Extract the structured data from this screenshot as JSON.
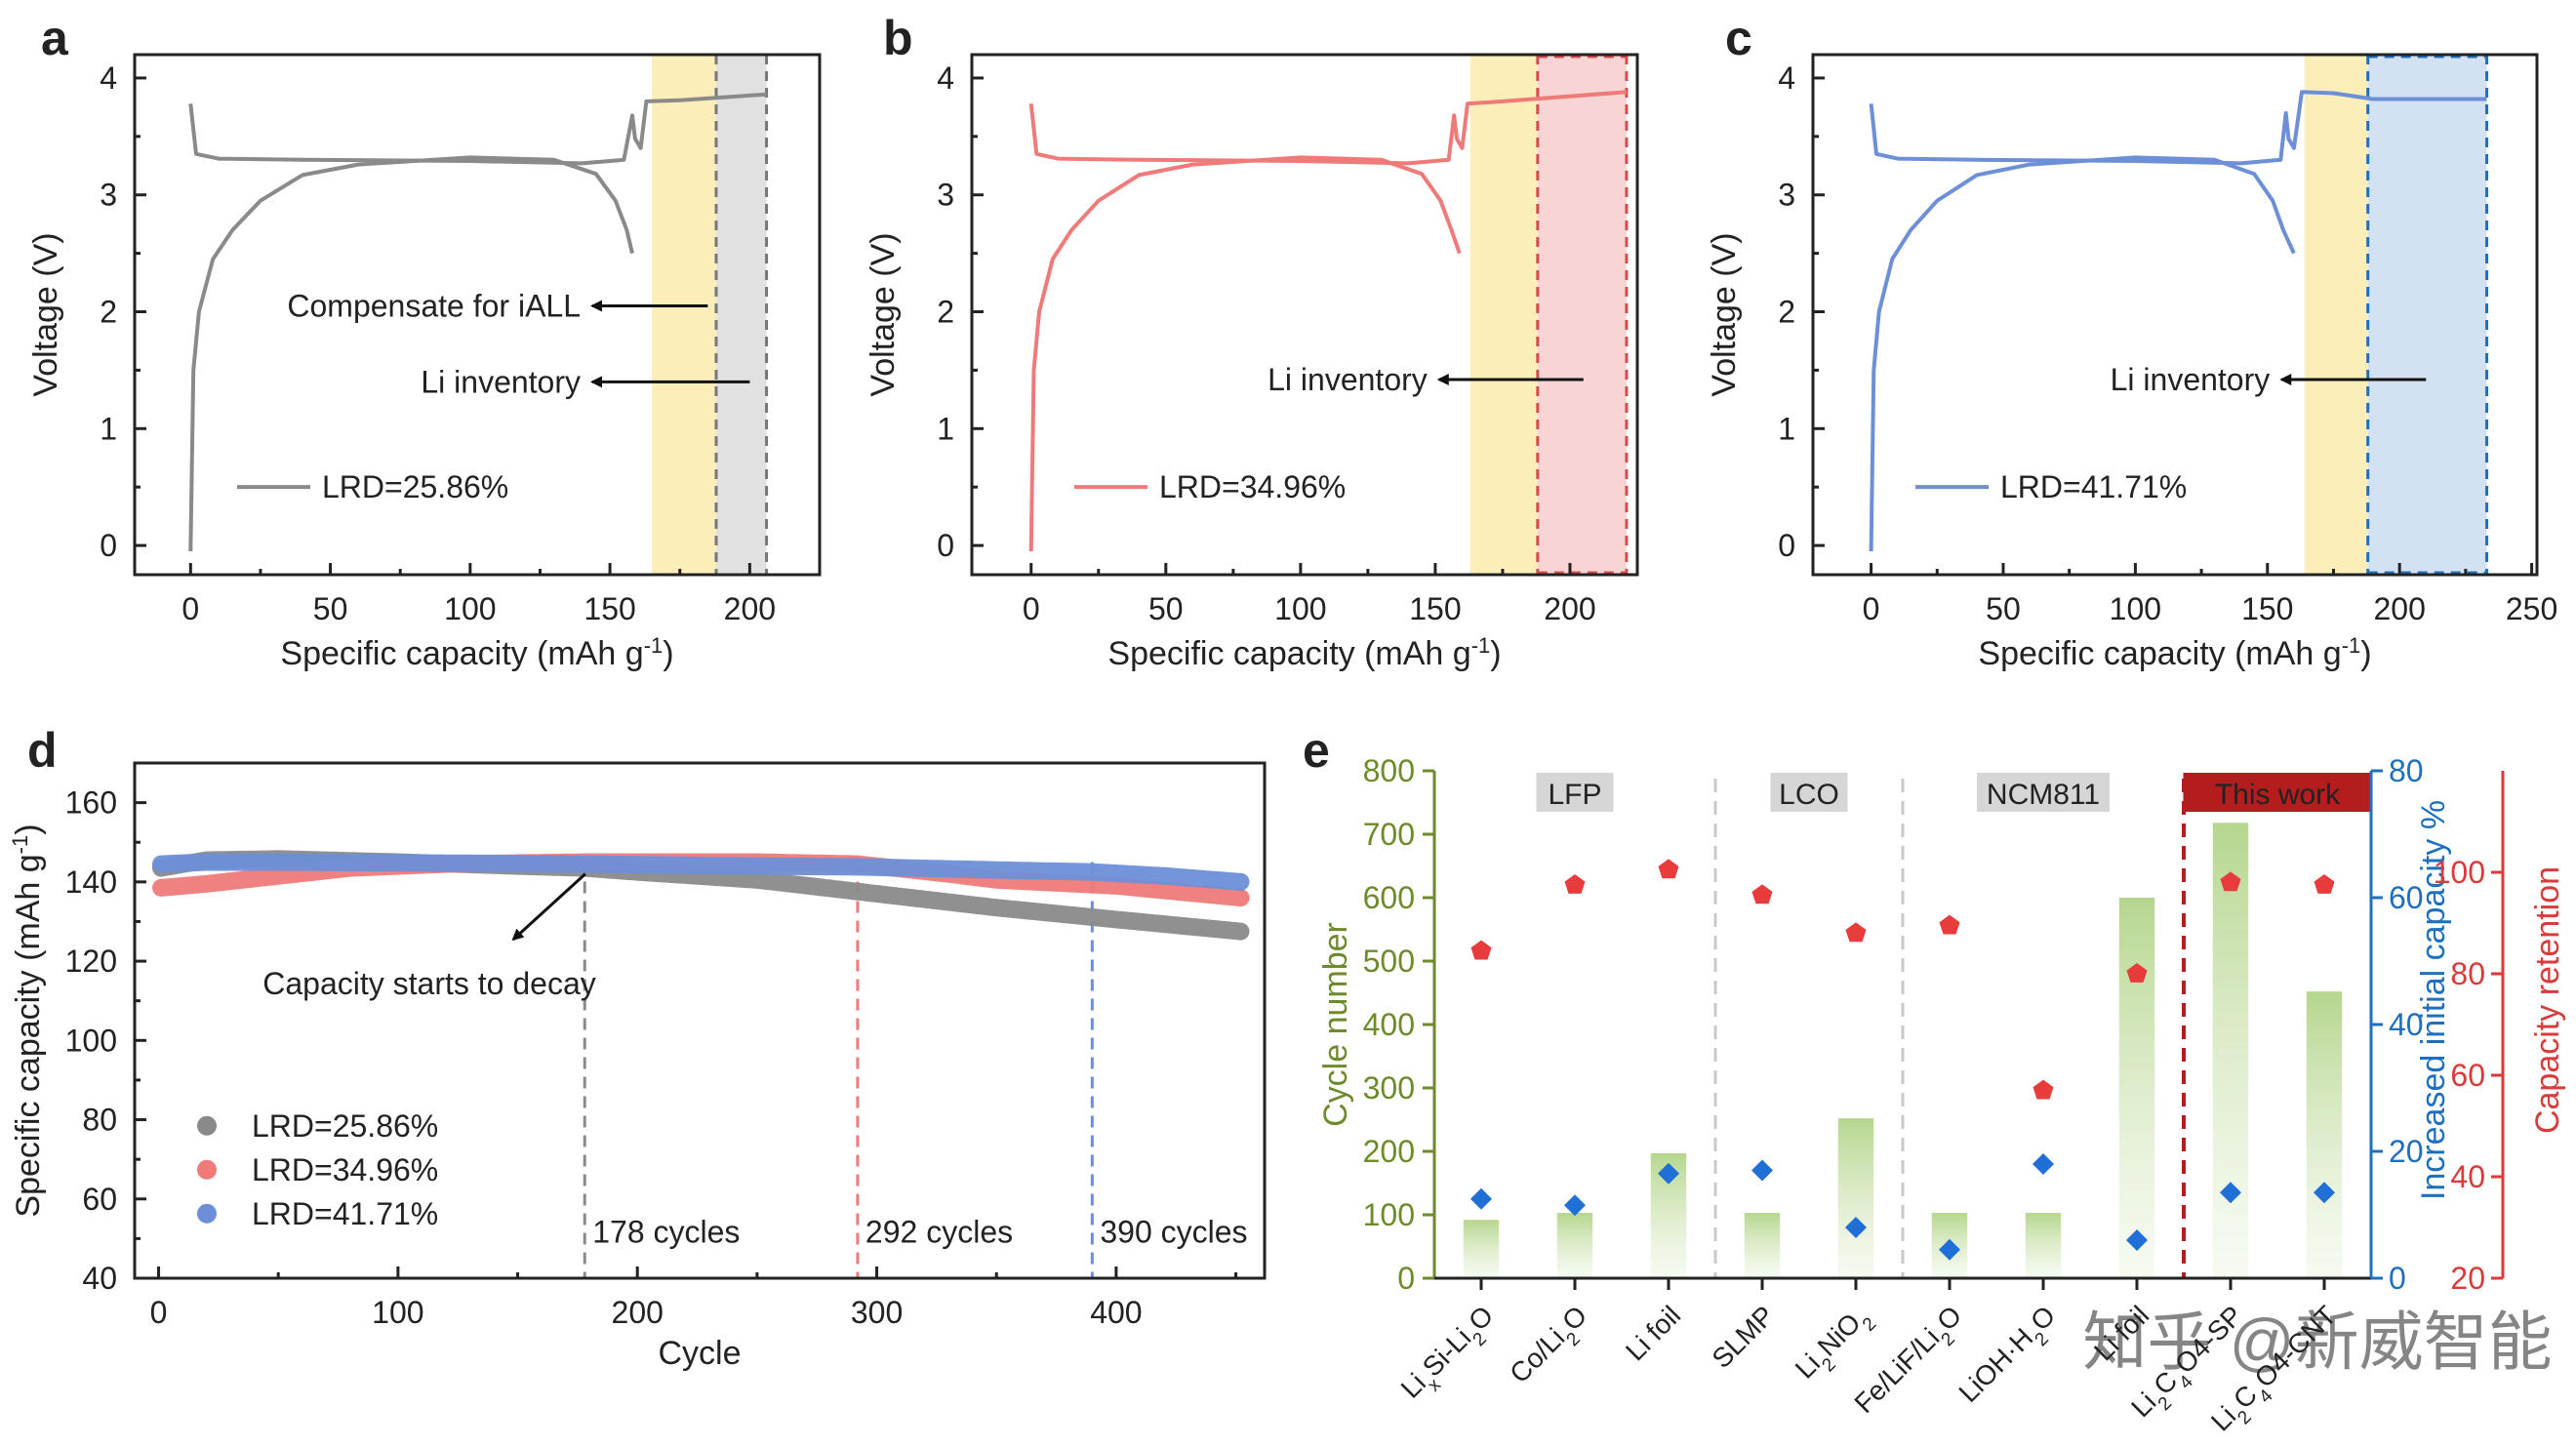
{
  "panels": {
    "a": "a",
    "b": "b",
    "c": "c",
    "d": "d",
    "e": "e"
  },
  "colors": {
    "gray": "#8a8a8a",
    "red": "#ef7a7a",
    "blue": "#6d8fd8",
    "yellow": "#fbeeb8",
    "shade_gray": "#e1e1e1",
    "shade_red": "#f9d4d4",
    "shade_blue": "#d3e2f2",
    "green_axis": "#6e8a2b",
    "blue_axis": "#1f6fbf",
    "red_axis": "#d93a3a",
    "dark_red": "#b31d1d"
  },
  "top_axis": {
    "xlabel_main": "Specific capacity (mAh g",
    "xlabel_sup": "-1",
    "xlabel_end": ")",
    "ylabel": "Voltage (V)"
  },
  "watermark": "知乎 @新威智能",
  "chart_data": [
    {
      "id": "a",
      "type": "line",
      "xlim": [
        -20,
        225
      ],
      "ylim": [
        -0.25,
        4.2
      ],
      "xticks": [
        0,
        50,
        100,
        150,
        200
      ],
      "yticks": [
        0,
        1,
        2,
        3,
        4
      ],
      "shade_yellow": [
        165,
        188
      ],
      "shade_extra": [
        188,
        206
      ],
      "extra_style": "gray",
      "legend": "LRD=25.86%",
      "annotations": [
        {
          "text": "Compensate for iALL",
          "x": 185,
          "y": 2.05,
          "tx": -2,
          "ty": 2.05
        },
        {
          "text": "Li inventory",
          "x": 200,
          "y": 1.4,
          "tx": -2,
          "ty": 1.4
        }
      ],
      "charge": [
        [
          0,
          3.78
        ],
        [
          2,
          3.35
        ],
        [
          10,
          3.31
        ],
        [
          40,
          3.3
        ],
        [
          100,
          3.29
        ],
        [
          140,
          3.27
        ],
        [
          155,
          3.3
        ],
        [
          158,
          3.68
        ],
        [
          159,
          3.48
        ],
        [
          161,
          3.4
        ],
        [
          163,
          3.8
        ],
        [
          175,
          3.81
        ],
        [
          206,
          3.86
        ]
      ],
      "discharge": [
        [
          0,
          -0.05
        ],
        [
          1,
          1.5
        ],
        [
          3,
          2.0
        ],
        [
          8,
          2.45
        ],
        [
          15,
          2.7
        ],
        [
          25,
          2.95
        ],
        [
          40,
          3.17
        ],
        [
          60,
          3.26
        ],
        [
          100,
          3.32
        ],
        [
          130,
          3.3
        ],
        [
          145,
          3.18
        ],
        [
          152,
          2.95
        ],
        [
          156,
          2.7
        ],
        [
          158,
          2.5
        ]
      ]
    },
    {
      "id": "b",
      "type": "line",
      "xlim": [
        -22,
        225
      ],
      "ylim": [
        -0.25,
        4.2
      ],
      "xticks": [
        0,
        50,
        100,
        150,
        200
      ],
      "yticks": [
        0,
        1,
        2,
        3,
        4
      ],
      "shade_yellow": [
        163,
        188
      ],
      "shade_extra": [
        188,
        221
      ],
      "extra_style": "red",
      "legend": "LRD=34.96%",
      "annotations": [
        {
          "text": "Li inventory",
          "x": 205,
          "y": 1.42,
          "tx": -2,
          "ty": 1.42
        }
      ],
      "charge": [
        [
          0,
          3.78
        ],
        [
          2,
          3.35
        ],
        [
          10,
          3.31
        ],
        [
          40,
          3.3
        ],
        [
          100,
          3.29
        ],
        [
          140,
          3.27
        ],
        [
          155,
          3.3
        ],
        [
          157,
          3.68
        ],
        [
          158,
          3.48
        ],
        [
          160,
          3.4
        ],
        [
          162,
          3.78
        ],
        [
          175,
          3.8
        ],
        [
          221,
          3.88
        ]
      ],
      "discharge": [
        [
          0,
          -0.05
        ],
        [
          1,
          1.5
        ],
        [
          3,
          2.0
        ],
        [
          8,
          2.45
        ],
        [
          15,
          2.7
        ],
        [
          25,
          2.95
        ],
        [
          40,
          3.17
        ],
        [
          60,
          3.26
        ],
        [
          100,
          3.32
        ],
        [
          130,
          3.3
        ],
        [
          145,
          3.18
        ],
        [
          152,
          2.95
        ],
        [
          156,
          2.7
        ],
        [
          159,
          2.5
        ]
      ]
    },
    {
      "id": "c",
      "type": "line",
      "xlim": [
        -22,
        252
      ],
      "ylim": [
        -0.25,
        4.2
      ],
      "xticks": [
        0,
        50,
        100,
        150,
        200,
        250
      ],
      "yticks": [
        0,
        1,
        2,
        3,
        4
      ],
      "shade_yellow": [
        164,
        188
      ],
      "shade_extra": [
        188,
        233
      ],
      "extra_style": "blue",
      "legend": "LRD=41.71%",
      "annotations": [
        {
          "text": "Li inventory",
          "x": 210,
          "y": 1.42,
          "tx": -2,
          "ty": 1.42
        }
      ],
      "charge": [
        [
          0,
          3.78
        ],
        [
          2,
          3.35
        ],
        [
          10,
          3.31
        ],
        [
          40,
          3.3
        ],
        [
          100,
          3.29
        ],
        [
          140,
          3.27
        ],
        [
          155,
          3.3
        ],
        [
          157,
          3.7
        ],
        [
          158,
          3.48
        ],
        [
          160,
          3.4
        ],
        [
          163,
          3.88
        ],
        [
          175,
          3.87
        ],
        [
          190,
          3.82
        ],
        [
          233,
          3.82
        ]
      ],
      "discharge": [
        [
          0,
          -0.05
        ],
        [
          1,
          1.5
        ],
        [
          3,
          2.0
        ],
        [
          8,
          2.45
        ],
        [
          15,
          2.7
        ],
        [
          25,
          2.95
        ],
        [
          40,
          3.17
        ],
        [
          60,
          3.26
        ],
        [
          100,
          3.32
        ],
        [
          130,
          3.3
        ],
        [
          145,
          3.18
        ],
        [
          152,
          2.95
        ],
        [
          156,
          2.7
        ],
        [
          160,
          2.5
        ]
      ]
    },
    {
      "id": "d",
      "type": "scatter",
      "xlabel": "Cycle",
      "ylabel_main": "Specific capacity (mAh g",
      "ylabel_sup": "-1",
      "ylabel_end": ")",
      "xlim": [
        -10,
        462
      ],
      "ylim": [
        40,
        170
      ],
      "xticks": [
        0,
        100,
        200,
        300,
        400
      ],
      "yticks": [
        40,
        60,
        80,
        100,
        120,
        140,
        160
      ],
      "series": [
        {
          "name": "LRD=25.86%",
          "color": "gray",
          "points": [
            [
              1,
              143.5
            ],
            [
              20,
              145.5
            ],
            [
              50,
              145.8
            ],
            [
              100,
              145
            ],
            [
              150,
              144
            ],
            [
              178,
              143.5
            ],
            [
              200,
              142.5
            ],
            [
              250,
              140.5
            ],
            [
              300,
              137
            ],
            [
              350,
              133.5
            ],
            [
              400,
              130.5
            ],
            [
              452,
              127.5
            ]
          ]
        },
        {
          "name": "LRD=34.96%",
          "color": "red",
          "points": [
            [
              1,
              138.5
            ],
            [
              20,
              139.5
            ],
            [
              50,
              141.5
            ],
            [
              80,
              143.5
            ],
            [
              120,
              144.5
            ],
            [
              178,
              145
            ],
            [
              250,
              145
            ],
            [
              292,
              144.5
            ],
            [
              330,
              142
            ],
            [
              350,
              140.5
            ],
            [
              400,
              139
            ],
            [
              452,
              136
            ]
          ]
        },
        {
          "name": "LRD=41.71%",
          "color": "blue",
          "points": [
            [
              1,
              144.5
            ],
            [
              20,
              145
            ],
            [
              50,
              145
            ],
            [
              100,
              144.8
            ],
            [
              178,
              144.5
            ],
            [
              250,
              144
            ],
            [
              292,
              143.8
            ],
            [
              350,
              143
            ],
            [
              390,
              142.5
            ],
            [
              420,
              141.5
            ],
            [
              452,
              140
            ]
          ]
        }
      ],
      "markers": [
        {
          "x": 178,
          "label": "178 cycles",
          "color": "gray"
        },
        {
          "x": 292,
          "label": "292 cycles",
          "color": "red"
        },
        {
          "x": 390,
          "label": "390 cycles",
          "color": "blue"
        }
      ],
      "annotation": {
        "text": "Capacity starts to decay",
        "x": 175,
        "y": 144,
        "tx": 140,
        "ty": 124
      }
    },
    {
      "id": "e",
      "type": "bar",
      "ylabel_left": "Cycle number",
      "ylabel_mid": "Increased initial capacity %",
      "ylabel_right": "Capacity retention",
      "ylim_left": [
        0,
        800
      ],
      "yticks_left": [
        0,
        100,
        200,
        300,
        400,
        500,
        600,
        700,
        800
      ],
      "ylim_mid": [
        0,
        80
      ],
      "yticks_mid": [
        0,
        20,
        40,
        60,
        80
      ],
      "ylim_right": [
        20,
        120
      ],
      "yticks_right": [
        20,
        40,
        60,
        80,
        100
      ],
      "groups": [
        {
          "label": "LFP",
          "start": 0,
          "end": 3
        },
        {
          "label": "LCO",
          "start": 3,
          "end": 5
        },
        {
          "label": "NCM811",
          "start": 5,
          "end": 8
        },
        {
          "label": "This work",
          "start": 8,
          "end": 10,
          "highlight": true
        }
      ],
      "categories": [
        {
          "main": "Li",
          "sub1": "x",
          "mid": "Si-Li",
          "sub2": "2",
          "end": "O"
        },
        {
          "main": "Co/Li",
          "sub1": "2",
          "mid": "O",
          "sub2": "",
          "end": ""
        },
        {
          "main": "Li foil",
          "sub1": "",
          "mid": "",
          "sub2": "",
          "end": ""
        },
        {
          "main": "SLMP",
          "sub1": "",
          "mid": "",
          "sub2": "",
          "end": ""
        },
        {
          "main": "Li",
          "sub1": "2",
          "mid": "NiO",
          "sub2": "2",
          "end": ""
        },
        {
          "main": "Fe/LiF/Li",
          "sub1": "2",
          "mid": "O",
          "sub2": "",
          "end": ""
        },
        {
          "main": "LiOH·H",
          "sub1": "2",
          "mid": "O",
          "sub2": "",
          "end": ""
        },
        {
          "main": "Li foil",
          "sub1": "",
          "mid": "",
          "sub2": "",
          "end": ""
        },
        {
          "main": "Li",
          "sub1": "2",
          "mid": "C",
          "sub2": "4",
          "end": "O4-SP"
        },
        {
          "main": "Li",
          "sub1": "2",
          "mid": "C",
          "sub2": "4",
          "end": "O4-CNT"
        }
      ],
      "cycle_number": [
        92,
        103,
        197,
        103,
        252,
        103,
        103,
        600,
        718,
        452
      ],
      "increased_capacity": [
        12.5,
        11.5,
        16.5,
        17,
        8,
        4.5,
        18,
        6,
        13.5,
        13.5
      ],
      "capacity_retention": [
        84.5,
        97.5,
        100.5,
        95.5,
        88,
        89.5,
        57,
        80,
        98,
        97.5
      ]
    }
  ]
}
